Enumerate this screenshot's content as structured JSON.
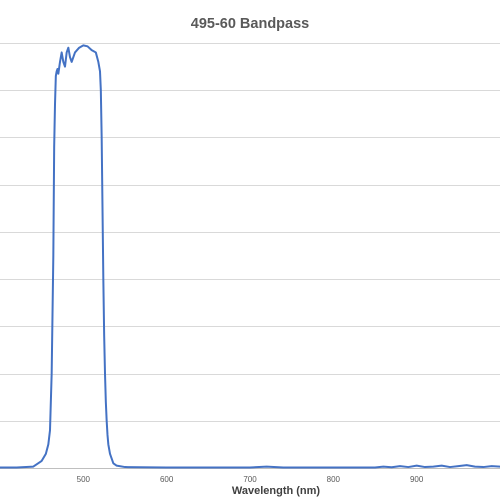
{
  "chart_data": {
    "type": "line",
    "title": "495-60 Bandpass",
    "xlabel": "Wavelength (nm)",
    "ylabel": "",
    "xlim": [
      400,
      1000
    ],
    "ylim": [
      0,
      90
    ],
    "x_ticks": [
      500,
      600,
      700,
      800,
      900
    ],
    "x_tick_labels": [
      "500",
      "600",
      "700",
      "800",
      "900"
    ],
    "y_gridlines": [
      0,
      10,
      20,
      30,
      40,
      50,
      60,
      70,
      80,
      90
    ],
    "grid": true,
    "legend": "none",
    "colors": {
      "series": "#4472c4",
      "grid": "#d9d9d9",
      "axis": "#bfbfbf"
    },
    "series": [
      {
        "x": [
          400,
          420,
          440,
          450,
          455,
          458,
          460,
          462,
          464,
          465,
          466,
          467,
          468,
          469,
          470,
          472,
          474,
          476,
          478,
          480,
          482,
          484,
          486,
          488,
          490,
          495,
          500,
          505,
          510,
          515,
          518,
          520,
          521,
          522,
          523,
          524,
          525,
          526,
          527,
          528,
          529,
          530,
          532,
          534,
          536,
          540,
          550,
          600,
          650,
          700,
          720,
          740,
          780,
          850,
          860,
          870,
          880,
          890,
          900,
          910,
          920,
          930,
          940,
          950,
          960,
          970,
          980,
          990,
          1000
        ],
        "y": [
          0.1,
          0.1,
          0.3,
          1.5,
          3,
          5,
          8,
          20,
          45,
          68,
          77,
          83,
          84,
          84.5,
          83.5,
          86,
          88,
          86,
          85,
          88,
          89,
          87,
          86,
          87,
          88,
          89,
          89.5,
          89.3,
          88.5,
          88,
          86,
          84,
          80,
          70,
          55,
          40,
          28,
          20,
          14,
          10,
          7,
          5,
          3,
          2,
          1,
          0.5,
          0.2,
          0.1,
          0.1,
          0.1,
          0.3,
          0.1,
          0.1,
          0.1,
          0.3,
          0.15,
          0.4,
          0.2,
          0.5,
          0.2,
          0.3,
          0.5,
          0.2,
          0.4,
          0.6,
          0.3,
          0.2,
          0.4,
          0.3
        ]
      }
    ]
  }
}
